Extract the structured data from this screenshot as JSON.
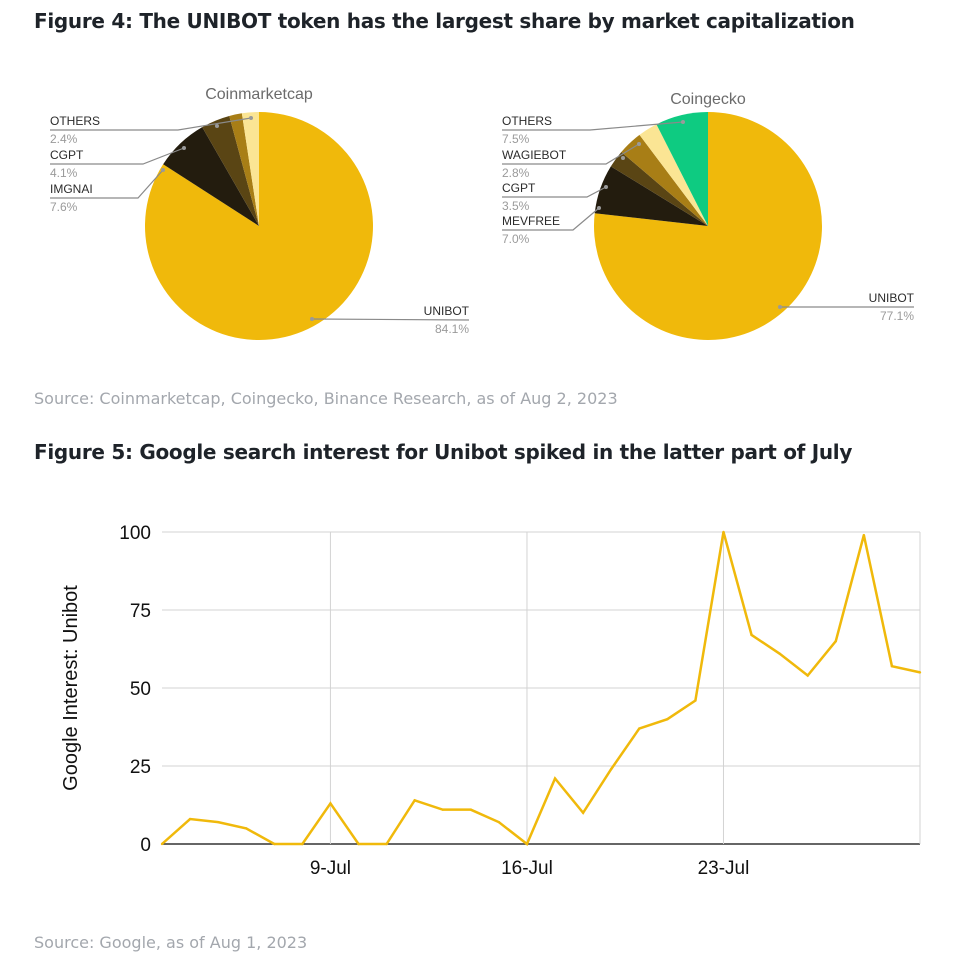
{
  "figure4": {
    "title": "Figure 4: The UNIBOT token has the largest share by market capitalization",
    "source": "Source: Coinmarketcap, Coingecko, Binance Research, as of Aug 2, 2023"
  },
  "figure5": {
    "title": "Figure 5: Google search interest for Unibot spiked in the latter part of July",
    "source": "Source: Google, as of Aug 1, 2023"
  },
  "chart_data": [
    {
      "type": "pie",
      "title": "Coinmarketcap",
      "slices": [
        {
          "label": "UNIBOT",
          "pct_label": "84.1%",
          "value": 84.1,
          "color": "#F0B90B"
        },
        {
          "label": "IMGNAI",
          "pct_label": "7.6%",
          "value": 7.6,
          "color": "#231C0E"
        },
        {
          "label": "CGPT",
          "pct_label": "4.1%",
          "value": 4.1,
          "color": "#5A4514"
        },
        {
          "label": "",
          "pct_label": "",
          "value": 1.8,
          "color": "#A87E16"
        },
        {
          "label": "OTHERS",
          "pct_label": "2.4%",
          "value": 2.4,
          "color": "#FBE594"
        }
      ]
    },
    {
      "type": "pie",
      "title": "Coingecko",
      "slices": [
        {
          "label": "UNIBOT",
          "pct_label": "77.1%",
          "value": 77.1,
          "color": "#F0B90B"
        },
        {
          "label": "MEVFREE",
          "pct_label": "7.0%",
          "value": 7.0,
          "color": "#231C0E"
        },
        {
          "label": "",
          "pct_label": "",
          "value": 2.5,
          "color": "#5A4514"
        },
        {
          "label": "CGPT",
          "pct_label": "3.5%",
          "value": 3.5,
          "color": "#A87E16"
        },
        {
          "label": "WAGIEBOT",
          "pct_label": "2.8%",
          "value": 2.8,
          "color": "#FBE594"
        },
        {
          "label": "OTHERS",
          "pct_label": "7.5%",
          "value": 7.5,
          "color": "#0ECB81"
        }
      ]
    },
    {
      "type": "line",
      "ylabel": "Google Interest: Unibot",
      "ylim": [
        0,
        100
      ],
      "yticks": [
        0,
        25,
        50,
        75,
        100
      ],
      "xlim": [
        "2023-07-03",
        "2023-07-30"
      ],
      "xticks": [
        {
          "date": "2023-07-09",
          "label": "9-Jul"
        },
        {
          "date": "2023-07-16",
          "label": "16-Jul"
        },
        {
          "date": "2023-07-23",
          "label": "23-Jul"
        }
      ],
      "grid": true,
      "color": "#F0B90B",
      "series": [
        {
          "x": [
            "2023-07-03",
            "2023-07-04",
            "2023-07-05",
            "2023-07-06",
            "2023-07-07",
            "2023-07-08",
            "2023-07-09",
            "2023-07-10",
            "2023-07-11",
            "2023-07-12",
            "2023-07-13",
            "2023-07-14",
            "2023-07-15",
            "2023-07-16",
            "2023-07-17",
            "2023-07-18",
            "2023-07-19",
            "2023-07-20",
            "2023-07-21",
            "2023-07-22",
            "2023-07-23",
            "2023-07-24",
            "2023-07-25",
            "2023-07-26",
            "2023-07-27",
            "2023-07-28",
            "2023-07-29",
            "2023-07-30"
          ],
          "values": [
            0,
            8,
            7,
            5,
            0,
            0,
            13,
            0,
            0,
            14,
            11,
            11,
            7,
            0,
            21,
            10,
            24,
            37,
            40,
            46,
            100,
            67,
            61,
            54,
            65,
            99,
            57,
            55
          ]
        }
      ]
    }
  ]
}
